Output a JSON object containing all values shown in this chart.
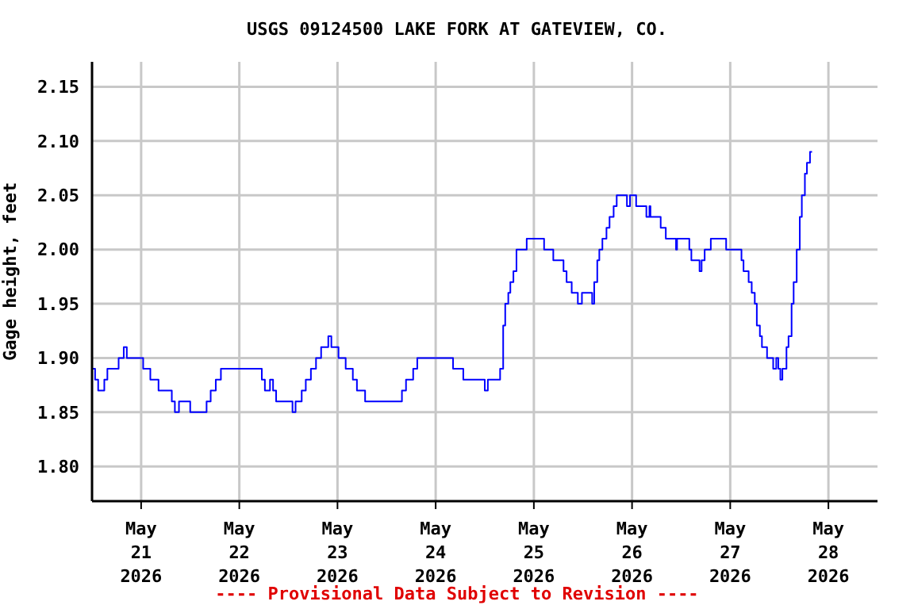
{
  "chart_data": {
    "type": "step",
    "title": "USGS 09124500 LAKE FORK AT GATEVIEW, CO.",
    "ylabel": "Gage height, feet",
    "annotations": [
      "---- Provisional Data Subject to Revision ----"
    ],
    "series": [
      {
        "color": "#0000ff",
        "x": [
          "2026-05-20T12:00",
          "2026-05-20T12:45",
          "2026-05-20T13:30",
          "2026-05-20T14:15",
          "2026-05-20T15:00",
          "2026-05-20T15:45",
          "2026-05-20T17:30",
          "2026-05-20T18:30",
          "2026-05-20T19:45",
          "2026-05-20T20:30",
          "2026-05-20T23:30",
          "2026-05-21T00:30",
          "2026-05-21T01:15",
          "2026-05-21T02:15",
          "2026-05-21T04:15",
          "2026-05-21T06:15",
          "2026-05-21T07:30",
          "2026-05-21T08:15",
          "2026-05-21T09:15",
          "2026-05-21T11:15",
          "2026-05-21T12:00",
          "2026-05-21T15:15",
          "2026-05-21T16:00",
          "2026-05-21T17:00",
          "2026-05-21T18:15",
          "2026-05-21T19:30",
          "2026-05-21T23:45",
          "2026-05-22T04:15",
          "2026-05-22T05:30",
          "2026-05-22T06:15",
          "2026-05-22T07:30",
          "2026-05-22T08:15",
          "2026-05-22T09:00",
          "2026-05-22T12:00",
          "2026-05-22T13:00",
          "2026-05-22T13:45",
          "2026-05-22T15:15",
          "2026-05-22T16:15",
          "2026-05-22T17:30",
          "2026-05-22T18:45",
          "2026-05-22T20:00",
          "2026-05-22T21:45",
          "2026-05-22T22:30",
          "2026-05-23T00:15",
          "2026-05-23T02:00",
          "2026-05-23T03:45",
          "2026-05-23T04:45",
          "2026-05-23T06:45",
          "2026-05-23T14:30",
          "2026-05-23T15:45",
          "2026-05-23T16:45",
          "2026-05-23T18:30",
          "2026-05-23T19:30",
          "2026-05-24T03:00",
          "2026-05-24T04:15",
          "2026-05-24T06:00",
          "2026-05-24T06:45",
          "2026-05-24T11:15",
          "2026-05-24T12:00",
          "2026-05-24T12:45",
          "2026-05-24T14:30",
          "2026-05-24T15:45",
          "2026-05-24T16:30",
          "2026-05-24T17:00",
          "2026-05-24T17:45",
          "2026-05-24T18:15",
          "2026-05-24T19:00",
          "2026-05-24T19:45",
          "2026-05-24T21:30",
          "2026-05-24T22:15",
          "2026-05-25T02:00",
          "2026-05-25T02:30",
          "2026-05-25T04:15",
          "2026-05-25T04:45",
          "2026-05-25T06:30",
          "2026-05-25T07:15",
          "2026-05-25T08:00",
          "2026-05-25T09:15",
          "2026-05-25T10:45",
          "2026-05-25T11:45",
          "2026-05-25T13:15",
          "2026-05-25T14:15",
          "2026-05-25T14:45",
          "2026-05-25T15:30",
          "2026-05-25T16:00",
          "2026-05-25T16:45",
          "2026-05-25T17:45",
          "2026-05-25T18:30",
          "2026-05-25T19:30",
          "2026-05-25T20:15",
          "2026-05-25T22:15",
          "2026-05-25T22:45",
          "2026-05-25T23:30",
          "2026-05-26T00:45",
          "2026-05-26T01:00",
          "2026-05-26T03:15",
          "2026-05-26T03:30",
          "2026-05-26T04:15",
          "2026-05-26T04:30",
          "2026-05-26T06:30",
          "2026-05-26T07:00",
          "2026-05-26T08:15",
          "2026-05-26T10:30",
          "2026-05-26T10:45",
          "2026-05-26T11:00",
          "2026-05-26T13:30",
          "2026-05-26T14:00",
          "2026-05-26T14:30",
          "2026-05-26T16:00",
          "2026-05-26T16:30",
          "2026-05-26T17:00",
          "2026-05-26T17:45",
          "2026-05-26T19:15",
          "2026-05-26T22:30",
          "2026-05-26T23:00",
          "2026-05-27T02:00",
          "2026-05-27T02:45",
          "2026-05-27T03:15",
          "2026-05-27T04:30",
          "2026-05-27T05:15",
          "2026-05-27T06:00",
          "2026-05-27T06:30",
          "2026-05-27T07:15",
          "2026-05-27T07:45",
          "2026-05-27T09:00",
          "2026-05-27T10:30",
          "2026-05-27T11:15",
          "2026-05-27T11:45",
          "2026-05-27T12:15",
          "2026-05-27T12:45",
          "2026-05-27T13:45",
          "2026-05-27T14:15",
          "2026-05-27T15:00",
          "2026-05-27T15:30",
          "2026-05-27T16:15",
          "2026-05-27T17:00",
          "2026-05-27T17:30",
          "2026-05-27T18:15",
          "2026-05-27T18:45",
          "2026-05-27T19:30",
          "2026-05-27T20:00"
        ],
        "values": [
          1.89,
          1.88,
          1.87,
          1.87,
          1.88,
          1.89,
          1.89,
          1.9,
          1.91,
          1.9,
          1.9,
          1.89,
          1.89,
          1.88,
          1.87,
          1.87,
          1.86,
          1.85,
          1.86,
          1.86,
          1.85,
          1.85,
          1.86,
          1.87,
          1.88,
          1.89,
          1.89,
          1.89,
          1.88,
          1.87,
          1.88,
          1.87,
          1.86,
          1.86,
          1.85,
          1.86,
          1.87,
          1.88,
          1.89,
          1.9,
          1.91,
          1.92,
          1.91,
          1.9,
          1.89,
          1.88,
          1.87,
          1.86,
          1.86,
          1.87,
          1.88,
          1.89,
          1.9,
          1.9,
          1.89,
          1.89,
          1.88,
          1.88,
          1.87,
          1.88,
          1.88,
          1.89,
          1.93,
          1.95,
          1.96,
          1.97,
          1.98,
          2.0,
          2.0,
          2.01,
          2.01,
          2.0,
          2.0,
          1.99,
          1.99,
          1.98,
          1.97,
          1.96,
          1.95,
          1.96,
          1.96,
          1.95,
          1.97,
          1.99,
          2.0,
          2.01,
          2.02,
          2.03,
          2.04,
          2.05,
          2.05,
          2.04,
          2.05,
          2.05,
          2.04,
          2.04,
          2.03,
          2.04,
          2.03,
          2.03,
          2.02,
          2.01,
          2.01,
          2.0,
          2.01,
          2.01,
          2.0,
          1.99,
          1.99,
          1.98,
          1.99,
          2.0,
          2.01,
          2.01,
          2.0,
          2.0,
          1.99,
          1.98,
          1.97,
          1.96,
          1.95,
          1.93,
          1.92,
          1.91,
          1.9,
          1.89,
          1.9,
          1.89,
          1.88,
          1.89,
          1.91,
          1.92,
          1.95,
          1.97,
          2.0,
          2.03,
          2.05,
          2.07,
          2.08,
          2.09,
          2.09
        ]
      }
    ],
    "xlim": [
      "2026-05-20T12:00",
      "2026-05-28T12:00"
    ],
    "xticks": [
      {
        "value": "2026-05-21",
        "label": "May\n21\n2026"
      },
      {
        "value": "2026-05-22",
        "label": "May\n22\n2026"
      },
      {
        "value": "2026-05-23",
        "label": "May\n23\n2026"
      },
      {
        "value": "2026-05-24",
        "label": "May\n24\n2026"
      },
      {
        "value": "2026-05-25",
        "label": "May\n25\n2026"
      },
      {
        "value": "2026-05-26",
        "label": "May\n26\n2026"
      },
      {
        "value": "2026-05-27",
        "label": "May\n27\n2026"
      },
      {
        "value": "2026-05-28",
        "label": "May\n28\n2026"
      }
    ],
    "ylim": [
      1.768,
      2.173
    ],
    "yticks": [
      {
        "value": 1.8,
        "label": "1.80"
      },
      {
        "value": 1.85,
        "label": "1.85"
      },
      {
        "value": 1.9,
        "label": "1.90"
      },
      {
        "value": 1.95,
        "label": "1.95"
      },
      {
        "value": 2.0,
        "label": "2.00"
      },
      {
        "value": 2.05,
        "label": "2.05"
      },
      {
        "value": 2.1,
        "label": "2.10"
      },
      {
        "value": 2.15,
        "label": "2.15"
      }
    ],
    "grid": true,
    "legend": false
  }
}
